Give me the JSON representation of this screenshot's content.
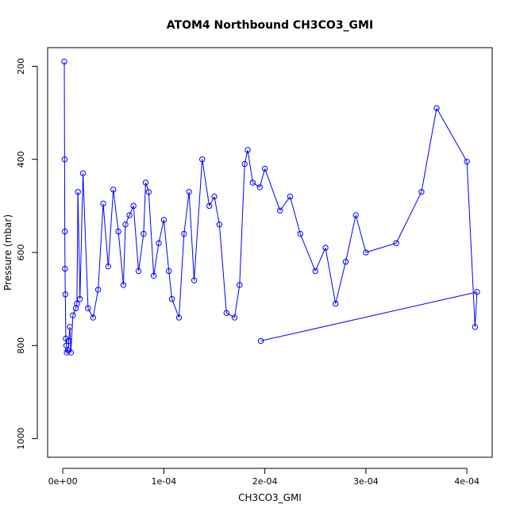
{
  "chart_data": {
    "type": "scatter",
    "title": "ATOM4 Northbound CH3CO3_GMI",
    "xlabel": "CH3CO3_GMI",
    "ylabel": "Pressure (mbar)",
    "xlim": [
      -1.5e-05,
      0.000425
    ],
    "ylim": [
      1040,
      160
    ],
    "y_inverted": true,
    "x_ticks": [
      0,
      0.0001,
      0.0002,
      0.0003,
      0.0004
    ],
    "x_tick_labels": [
      "0e+00",
      "1e-04",
      "2e-04",
      "3e-04",
      "4e-04"
    ],
    "y_ticks": [
      200,
      400,
      600,
      800,
      1000
    ],
    "y_tick_labels": [
      "200",
      "400",
      "600",
      "800",
      "1000"
    ],
    "grid": false,
    "series_color": "#0000ff",
    "marker": "open-circle",
    "connected": true,
    "series": [
      {
        "name": "",
        "points": [
          [
            1.5e-06,
            190
          ],
          [
            1.8e-06,
            400
          ],
          [
            2e-06,
            555
          ],
          [
            2.2e-06,
            635
          ],
          [
            2.5e-06,
            690
          ],
          [
            3e-06,
            785
          ],
          [
            3.5e-06,
            800
          ],
          [
            4e-06,
            815
          ],
          [
            5e-06,
            810
          ],
          [
            6e-06,
            790
          ],
          [
            7e-06,
            760
          ],
          [
            8e-06,
            815
          ],
          [
            1e-05,
            735
          ],
          [
            1.3e-05,
            720
          ],
          [
            1.4e-05,
            710
          ],
          [
            1.5e-05,
            470
          ],
          [
            1.7e-05,
            700
          ],
          [
            2e-05,
            430
          ],
          [
            2.5e-05,
            720
          ],
          [
            3e-05,
            740
          ],
          [
            3.5e-05,
            680
          ],
          [
            4e-05,
            495
          ],
          [
            4.5e-05,
            630
          ],
          [
            5e-05,
            465
          ],
          [
            5.5e-05,
            555
          ],
          [
            6e-05,
            670
          ],
          [
            6.2e-05,
            540
          ],
          [
            6.6e-05,
            520
          ],
          [
            7e-05,
            500
          ],
          [
            7.5e-05,
            640
          ],
          [
            8e-05,
            560
          ],
          [
            8.2e-05,
            450
          ],
          [
            8.5e-05,
            470
          ],
          [
            9e-05,
            650
          ],
          [
            9.5e-05,
            580
          ],
          [
            0.0001,
            530
          ],
          [
            0.000105,
            640
          ],
          [
            0.000108,
            700
          ],
          [
            0.000115,
            740
          ],
          [
            0.00012,
            560
          ],
          [
            0.000125,
            470
          ],
          [
            0.00013,
            660
          ],
          [
            0.000138,
            400
          ],
          [
            0.000145,
            500
          ],
          [
            0.00015,
            480
          ],
          [
            0.000155,
            540
          ],
          [
            0.000162,
            730
          ],
          [
            0.00017,
            740
          ],
          [
            0.000175,
            670
          ],
          [
            0.00018,
            410
          ],
          [
            0.000183,
            380
          ],
          [
            0.000188,
            450
          ],
          [
            0.000195,
            460
          ],
          [
            0.0002,
            420
          ],
          [
            0.000215,
            510
          ],
          [
            0.000225,
            480
          ],
          [
            0.000235,
            560
          ],
          [
            0.00025,
            640
          ],
          [
            0.00026,
            590
          ],
          [
            0.00027,
            710
          ],
          [
            0.00028,
            620
          ],
          [
            0.00029,
            520
          ],
          [
            0.0003,
            600
          ],
          [
            0.00033,
            580
          ],
          [
            0.000355,
            470
          ],
          [
            0.00037,
            290
          ],
          [
            0.0004,
            405
          ],
          [
            0.000408,
            760
          ],
          [
            0.00041,
            685
          ],
          [
            0.000196,
            790
          ]
        ]
      }
    ]
  }
}
